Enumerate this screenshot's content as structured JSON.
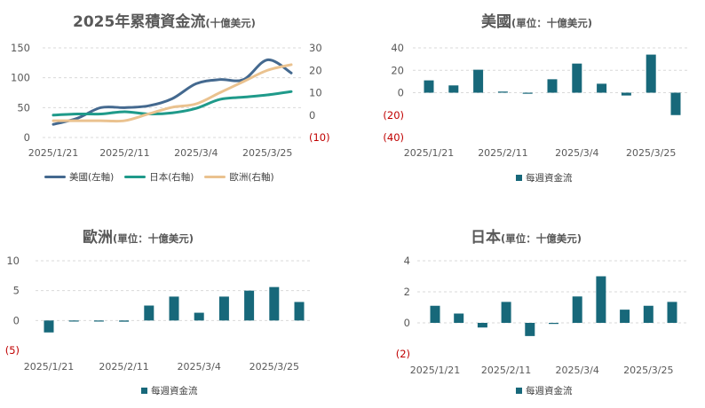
{
  "colors": {
    "us": "#44698F",
    "japan": "#1F9A8A",
    "europe": "#EAC28F",
    "bar": "#17687A",
    "negative": "#C00000",
    "grid": "#D9D9D9",
    "text": "#595959"
  },
  "chart_data": [
    {
      "type": "line",
      "title": "2025年累積資金流",
      "unit_note": "(十億美元)",
      "x_tick_labels": [
        "2025/1/21",
        "2025/2/11",
        "2025/3/4",
        "2025/3/25"
      ],
      "x_dates": [
        "2025/1/21",
        "2025/1/28",
        "2025/2/4",
        "2025/2/11",
        "2025/2/18",
        "2025/2/25",
        "2025/3/4",
        "2025/3/11",
        "2025/3/18",
        "2025/3/25",
        "2025/4/1"
      ],
      "left_axis": {
        "ticks": [
          "150",
          "100",
          "50",
          "0"
        ],
        "range": [
          0,
          150
        ]
      },
      "right_axis": {
        "ticks": [
          "30",
          "20",
          "10",
          "0",
          "(10)"
        ],
        "range": [
          -10,
          30
        ]
      },
      "series": [
        {
          "name": "美國(左軸)",
          "axis": "left",
          "values": [
            22,
            32,
            50,
            50,
            53,
            65,
            90,
            97,
            97,
            130,
            108
          ]
        },
        {
          "name": "日本(右軸)",
          "axis": "right",
          "values": [
            0,
            0.5,
            0.5,
            1.5,
            0.5,
            1.0,
            3.0,
            7.0,
            8.0,
            9.0,
            10.5
          ]
        },
        {
          "name": "歐洲(右軸)",
          "axis": "right",
          "values": [
            -2.5,
            -2.5,
            -2.5,
            -2.5,
            0.5,
            3.5,
            5.0,
            10.0,
            15.0,
            20.0,
            22.5
          ]
        }
      ]
    },
    {
      "type": "bar",
      "title": "美國",
      "unit_note": "(單位：十億美元)",
      "x_tick_labels": [
        "2025/1/21",
        "2025/2/11",
        "2025/3/4",
        "2025/3/25"
      ],
      "y_ticks": [
        "40",
        "20",
        "0",
        "(20)",
        "(40)"
      ],
      "ylim": [
        -40,
        40
      ],
      "legend": "每週資金流",
      "series": [
        {
          "name": "每週資金流",
          "values": [
            11,
            6.5,
            20.5,
            1,
            -0.5,
            12,
            26,
            8,
            -2.5,
            34,
            -20
          ]
        }
      ]
    },
    {
      "type": "bar",
      "title": "歐洲",
      "unit_note": "(單位：十億美元)",
      "x_tick_labels": [
        "2025/1/21",
        "2025/2/11",
        "2025/3/4",
        "2025/3/25"
      ],
      "y_ticks": [
        "10",
        "5",
        "0",
        "(5)"
      ],
      "ylim": [
        -5,
        10
      ],
      "legend": "每週資金流",
      "series": [
        {
          "name": "每週資金流",
          "values": [
            -2,
            -0.1,
            -0.1,
            -0.2,
            2.5,
            4,
            1.3,
            4,
            5,
            5.6,
            3.1
          ]
        }
      ]
    },
    {
      "type": "bar",
      "title": "日本",
      "unit_note": "(單位：十億美元)",
      "x_tick_labels": [
        "2025/1/21",
        "2025/2/11",
        "2025/3/4",
        "2025/3/25"
      ],
      "y_ticks": [
        "4",
        "2",
        "0",
        "(2)"
      ],
      "ylim": [
        -2,
        4
      ],
      "legend": "每週資金流",
      "series": [
        {
          "name": "每週資金流",
          "values": [
            1.1,
            0.6,
            -0.3,
            1.35,
            -0.85,
            -0.05,
            1.7,
            3.0,
            0.85,
            1.1,
            1.35
          ]
        }
      ]
    }
  ]
}
